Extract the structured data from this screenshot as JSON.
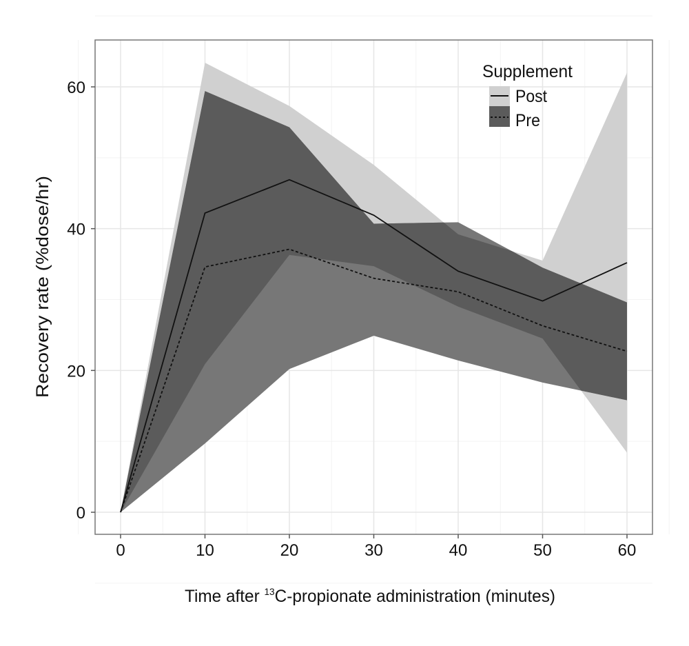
{
  "chart_data": {
    "type": "area",
    "title": "",
    "xlabel_parts": {
      "prefix": "Time after ",
      "superscript": "13",
      "suffix": "C-propionate administration (minutes)"
    },
    "ylabel": "Recovery rate (%dose/hr)",
    "xlim": [
      0,
      60
    ],
    "ylim": [
      0,
      60
    ],
    "x_ticks": [
      0,
      10,
      20,
      30,
      40,
      50,
      60
    ],
    "y_ticks": [
      0,
      20,
      40,
      60
    ],
    "x_tick_labels": [
      "0",
      "10",
      "20",
      "30",
      "40",
      "50",
      "60"
    ],
    "y_tick_labels": [
      "0",
      "20",
      "40",
      "60"
    ],
    "grid": true,
    "legend": {
      "title": "Supplement",
      "placement": "top-right-inside"
    },
    "x": [
      0,
      10,
      20,
      30,
      40,
      50,
      60
    ],
    "series": [
      {
        "name": "Post",
        "line_style": "solid",
        "band_color": "#d0d0d0",
        "mean": [
          0,
          42.2,
          46.9,
          41.9,
          34.0,
          29.8,
          35.2
        ],
        "upper": [
          0,
          63.4,
          57.3,
          49.0,
          39.2,
          35.5,
          62.0
        ],
        "lower": [
          0,
          20.9,
          36.3,
          34.7,
          29.0,
          24.5,
          8.4
        ]
      },
      {
        "name": "Pre",
        "line_style": "dashed",
        "band_color": "#777777",
        "mean": [
          0,
          34.6,
          37.1,
          33.0,
          31.1,
          26.3,
          22.7
        ],
        "upper": [
          0,
          59.4,
          54.3,
          40.7,
          40.9,
          34.5,
          29.6
        ],
        "lower": [
          0,
          9.7,
          20.2,
          24.9,
          21.4,
          18.3,
          15.8
        ]
      }
    ],
    "overlap_color": "#5b5b5b"
  }
}
